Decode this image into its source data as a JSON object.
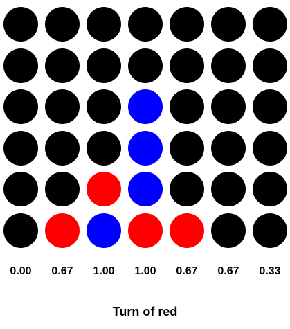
{
  "colors": {
    "empty": "#000000",
    "blue": "#0000ff",
    "red": "#ff0000"
  },
  "board": {
    "rows": [
      [
        "empty",
        "empty",
        "empty",
        "empty",
        "empty",
        "empty",
        "empty"
      ],
      [
        "empty",
        "empty",
        "empty",
        "empty",
        "empty",
        "empty",
        "empty"
      ],
      [
        "empty",
        "empty",
        "empty",
        "blue",
        "empty",
        "empty",
        "empty"
      ],
      [
        "empty",
        "empty",
        "empty",
        "blue",
        "empty",
        "empty",
        "empty"
      ],
      [
        "empty",
        "empty",
        "red",
        "blue",
        "empty",
        "empty",
        "empty"
      ],
      [
        "empty",
        "red",
        "blue",
        "red",
        "red",
        "empty",
        "empty"
      ]
    ]
  },
  "scores": [
    "0.00",
    "0.67",
    "1.00",
    "1.00",
    "0.67",
    "0.67",
    "0.33"
  ],
  "status": "Turn of red"
}
